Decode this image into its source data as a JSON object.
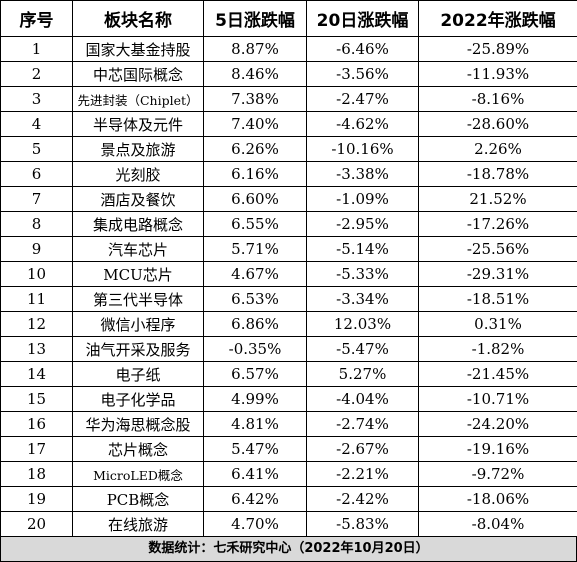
{
  "headers": [
    "序号",
    "板块名称",
    "5日涨跌幅",
    "20日涨跌幅",
    "2022年涨跌幅"
  ],
  "rows": [
    {
      "no": "1",
      "name": "国家大基金持股",
      "d5": "8.87%",
      "d20": "-6.46%",
      "ytd": "-25.89%"
    },
    {
      "no": "2",
      "name": "中芯国际概念",
      "d5": "8.46%",
      "d20": "-3.56%",
      "ytd": "-11.93%"
    },
    {
      "no": "3",
      "name": "先进封装（Chiplet）",
      "d5": "7.38%",
      "d20": "-2.47%",
      "ytd": "-8.16%"
    },
    {
      "no": "4",
      "name": "半导体及元件",
      "d5": "7.40%",
      "d20": "-4.62%",
      "ytd": "-28.60%"
    },
    {
      "no": "5",
      "name": "景点及旅游",
      "d5": "6.26%",
      "d20": "-10.16%",
      "ytd": "2.26%"
    },
    {
      "no": "6",
      "name": "光刻胶",
      "d5": "6.16%",
      "d20": "-3.38%",
      "ytd": "-18.78%"
    },
    {
      "no": "7",
      "name": "酒店及餐饮",
      "d5": "6.60%",
      "d20": "-1.09%",
      "ytd": "21.52%"
    },
    {
      "no": "8",
      "name": "集成电路概念",
      "d5": "6.55%",
      "d20": "-2.95%",
      "ytd": "-17.26%"
    },
    {
      "no": "9",
      "name": "汽车芯片",
      "d5": "5.71%",
      "d20": "-5.14%",
      "ytd": "-25.56%"
    },
    {
      "no": "10",
      "name": "MCU芯片",
      "d5": "4.67%",
      "d20": "-5.33%",
      "ytd": "-29.31%"
    },
    {
      "no": "11",
      "name": "第三代半导体",
      "d5": "6.53%",
      "d20": "-3.34%",
      "ytd": "-18.51%"
    },
    {
      "no": "12",
      "name": "微信小程序",
      "d5": "6.86%",
      "d20": "12.03%",
      "ytd": "0.31%"
    },
    {
      "no": "13",
      "name": "油气开采及服务",
      "d5": "-0.35%",
      "d20": "-5.47%",
      "ytd": "-1.82%"
    },
    {
      "no": "14",
      "name": "电子纸",
      "d5": "6.57%",
      "d20": "5.27%",
      "ytd": "-21.45%"
    },
    {
      "no": "15",
      "name": "电子化学品",
      "d5": "4.99%",
      "d20": "-4.04%",
      "ytd": "-10.71%"
    },
    {
      "no": "16",
      "name": "华为海思概念股",
      "d5": "4.81%",
      "d20": "-2.74%",
      "ytd": "-24.20%"
    },
    {
      "no": "17",
      "name": "芯片概念",
      "d5": "5.47%",
      "d20": "-2.67%",
      "ytd": "-19.16%"
    },
    {
      "no": "18",
      "name": "MicroLED概念",
      "d5": "6.41%",
      "d20": "-2.21%",
      "ytd": "-9.72%"
    },
    {
      "no": "19",
      "name": "PCB概念",
      "d5": "6.42%",
      "d20": "-2.42%",
      "ytd": "-18.06%"
    },
    {
      "no": "20",
      "name": "在线旅游",
      "d5": "4.70%",
      "d20": "-5.83%",
      "ytd": "-8.04%"
    }
  ],
  "footer": "数据统计：七禾研究中心（2022年10月20日）"
}
